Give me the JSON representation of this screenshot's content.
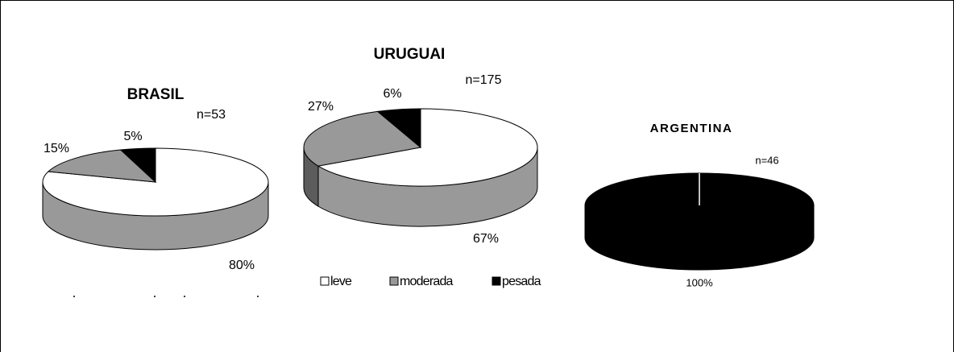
{
  "chart_data": [
    {
      "type": "pie3d",
      "title": "BRASIL",
      "annotation": "n=53",
      "categories": [
        "leve",
        "moderada",
        "pesada"
      ],
      "values": [
        80,
        15,
        5
      ],
      "value_labels": [
        "80%",
        "15%",
        "5%"
      ],
      "colors": [
        "#ffffff",
        "#999999",
        "#000000"
      ]
    },
    {
      "type": "pie3d",
      "title": "URUGUAI",
      "annotation": "n=175",
      "categories": [
        "leve",
        "moderada",
        "pesada"
      ],
      "values": [
        67,
        27,
        6
      ],
      "value_labels": [
        "67%",
        "27%",
        "6%"
      ],
      "colors": [
        "#ffffff",
        "#999999",
        "#000000"
      ]
    },
    {
      "type": "pie3d",
      "title": "ARGENTINA",
      "annotation": "n=46",
      "categories": [
        "pesada"
      ],
      "values": [
        100
      ],
      "value_labels": [
        "100%"
      ],
      "colors": [
        "#000000"
      ]
    }
  ]
}
